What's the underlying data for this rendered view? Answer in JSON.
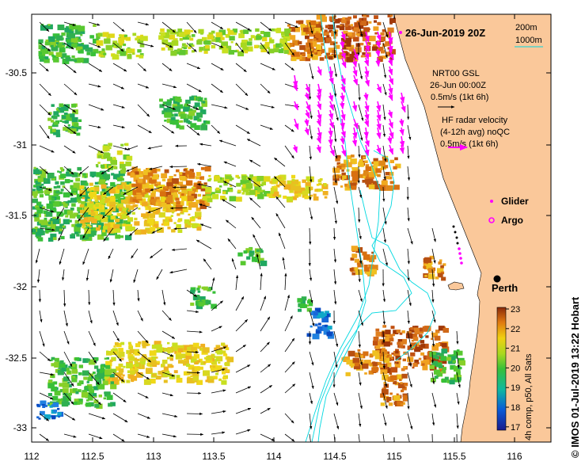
{
  "title": "26-Jun-2019 20Z",
  "credit": "© IMOS 01-Jul-2019 13:22 Hobart",
  "depth_contours": {
    "shallow": "200m",
    "deep": "1000m"
  },
  "model_legend": {
    "line1": "NRT00 GSL",
    "line2": "26-Jun 00:00Z",
    "line3": "0.5m/s (1kt 6h)"
  },
  "radar_legend": {
    "line1": "HF radar velocity",
    "line2": "(4-12h avg) noQC",
    "line3": "0.5m/s (1kt 6h)"
  },
  "glider_label": "Glider",
  "argo_label": "Argo",
  "city_label": "Perth",
  "colorbar": {
    "label": "4h comp, p50, All Sats",
    "ticks": [
      "23",
      "22",
      "21",
      "20",
      "19",
      "18",
      "17"
    ]
  },
  "colors": {
    "land": "#fac89a",
    "radar_arrows": "#ff00ff",
    "contour": "#00d8e0",
    "glider": "#ff00ff"
  },
  "axes": {
    "x_ticks": [
      "112",
      "112.5",
      "113",
      "113.5",
      "114",
      "114.5",
      "115",
      "115.5",
      "116"
    ],
    "y_ticks": [
      "-30.5",
      "-31",
      "-31.5",
      "-32",
      "-32.5",
      "-33"
    ],
    "x_range": [
      112,
      116.3
    ],
    "y_range": [
      -30.05,
      -33.1
    ]
  }
}
